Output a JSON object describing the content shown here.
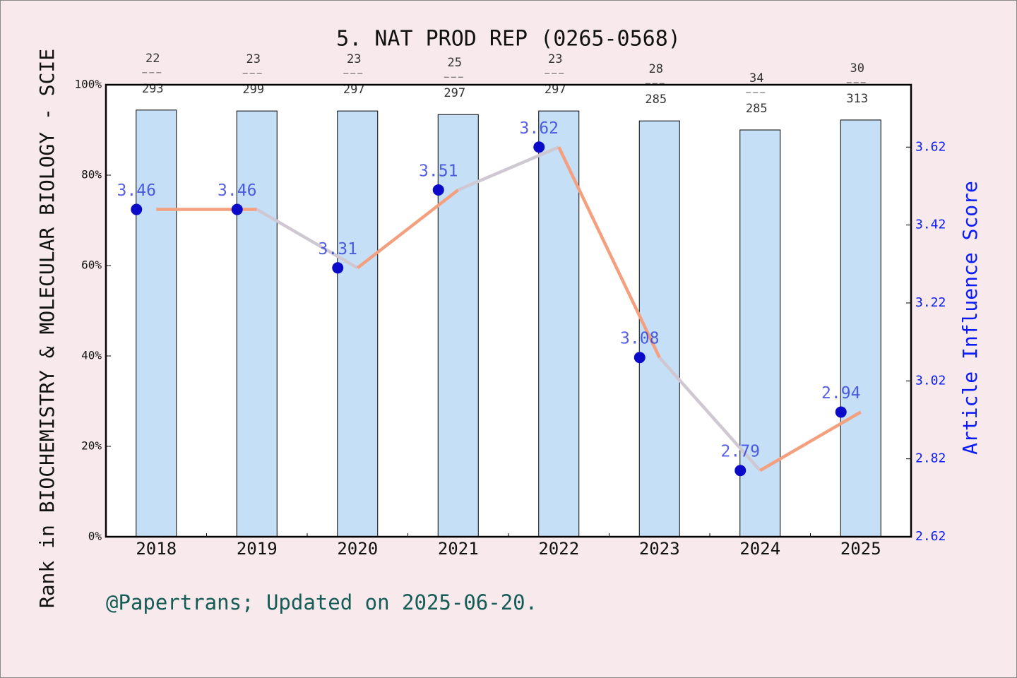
{
  "chart_data": {
    "type": "bar-line",
    "title": "5. NAT PROD REP (0265-0568)",
    "y_label": "Rank in BIOCHEMISTRY & MOLECULAR BIOLOGY - SCIE",
    "y2_label": "Article Influence Score",
    "footer": "@Papertrans; Updated on 2025-06-20.",
    "categories": [
      "2018",
      "2019",
      "2020",
      "2021",
      "2022",
      "2023",
      "2024",
      "2025"
    ],
    "ranks": [
      22,
      23,
      23,
      25,
      23,
      28,
      34,
      30
    ],
    "totals": [
      293,
      299,
      297,
      297,
      297,
      285,
      285,
      313
    ],
    "series": [
      {
        "name": "Rank percentile",
        "color": "#c5dff7",
        "values": [
          94.4,
          94.2,
          94.2,
          93.4,
          94.2,
          92.0,
          90.0,
          92.2
        ]
      },
      {
        "name": "Article Influence Score",
        "axis": "y2",
        "color": "#f4a07f",
        "color2": "#cfc8d2",
        "marker_color": "#0a0ac8",
        "values": [
          3.46,
          3.46,
          3.31,
          3.51,
          3.62,
          3.08,
          2.79,
          2.94
        ]
      }
    ],
    "ylim": [
      0,
      100
    ],
    "yticks": [
      {
        "value": 0,
        "label": "0%"
      },
      {
        "value": 20,
        "label": "20%"
      },
      {
        "value": 40,
        "label": "40%"
      },
      {
        "value": 60,
        "label": "60%"
      },
      {
        "value": 80,
        "label": "80%"
      },
      {
        "value": 100,
        "label": "100%"
      }
    ],
    "y2lim": [
      2.62,
      3.78
    ],
    "y2ticks": [
      2.62,
      2.82,
      3.02,
      3.22,
      3.42,
      3.62
    ]
  }
}
